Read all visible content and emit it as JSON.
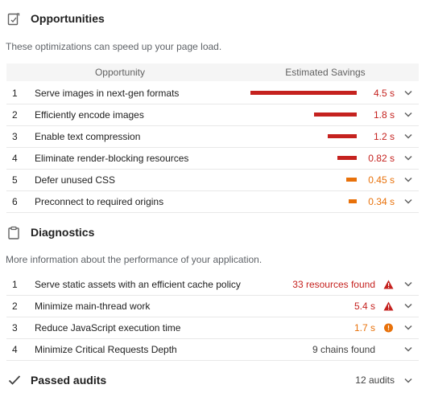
{
  "opportunities": {
    "title": "Opportunities",
    "icon": "opportunity-icon",
    "description": "These optimizations can speed up your page load.",
    "col_opportunity": "Opportunity",
    "col_savings": "Estimated Savings",
    "items": [
      {
        "num": "1",
        "label": "Serve images in next-gen formats",
        "savings": "4.5 s",
        "fraction": 1.0,
        "color": "#c5221f"
      },
      {
        "num": "2",
        "label": "Efficiently encode images",
        "savings": "1.8 s",
        "fraction": 0.4,
        "color": "#c5221f"
      },
      {
        "num": "3",
        "label": "Enable text compression",
        "savings": "1.2 s",
        "fraction": 0.27,
        "color": "#c5221f"
      },
      {
        "num": "4",
        "label": "Eliminate render-blocking resources",
        "savings": "0.82 s",
        "fraction": 0.18,
        "color": "#c5221f"
      },
      {
        "num": "5",
        "label": "Defer unused CSS",
        "savings": "0.45 s",
        "fraction": 0.1,
        "color": "#e8710a"
      },
      {
        "num": "6",
        "label": "Preconnect to required origins",
        "savings": "0.34 s",
        "fraction": 0.076,
        "color": "#e8710a"
      }
    ]
  },
  "diagnostics": {
    "title": "Diagnostics",
    "icon": "clipboard-icon",
    "description": "More information about the performance of your application.",
    "items": [
      {
        "num": "1",
        "label": "Serve static assets with an efficient cache policy",
        "value": "33 resources found",
        "status": "fail",
        "color": "#c5221f"
      },
      {
        "num": "2",
        "label": "Minimize main-thread work",
        "value": "5.4 s",
        "status": "fail",
        "color": "#c5221f"
      },
      {
        "num": "3",
        "label": "Reduce JavaScript execution time",
        "value": "1.7 s",
        "status": "average",
        "color": "#e8710a"
      },
      {
        "num": "4",
        "label": "Minimize Critical Requests Depth",
        "value": "9 chains found",
        "status": "info",
        "color": "#424242"
      }
    ]
  },
  "passed": {
    "title": "Passed audits",
    "count": "12 audits",
    "icon": "checkmark-icon"
  }
}
